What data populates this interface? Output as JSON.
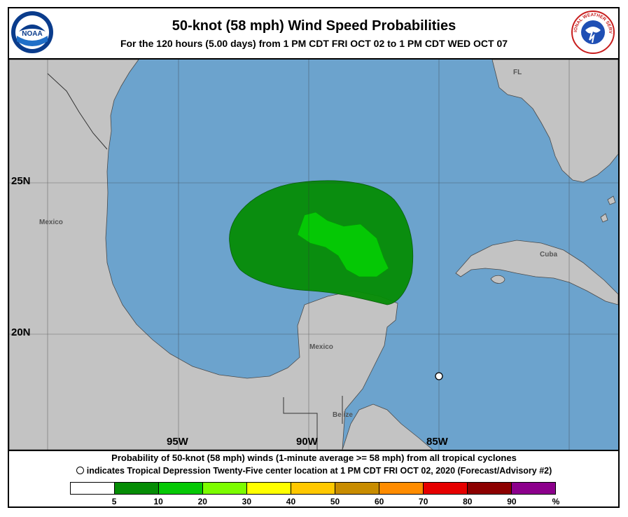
{
  "header": {
    "title": "50-knot (58 mph) Wind Speed Probabilities",
    "subtitle": "For the 120 hours (5.00 days) from 1 PM CDT FRI OCT 02 to 1 PM CDT WED OCT 07",
    "noaa_logo_text": "NOAA",
    "nws_logo_text": "NATIONAL WEATHER SERVICE"
  },
  "map": {
    "lat_labels": [
      "25N",
      "20N"
    ],
    "lon_labels": [
      "95W",
      "90W",
      "85W"
    ],
    "place_labels": [
      "FL",
      "Mexico",
      "Cuba",
      "Mexico",
      "Belize"
    ],
    "colors": {
      "ocean": "#6ca3cd",
      "land": "#c3c3c3",
      "prob_5_10": "#058c05",
      "prob_10_20": "#05c805"
    }
  },
  "caption": {
    "line1": "Probability of 50-knot (58 mph) winds (1-minute average >= 58 mph) from all tropical cyclones",
    "line2": "indicates Tropical Depression Twenty-Five center location at 1 PM CDT FRI OCT 02, 2020 (Forecast/Advisory #2)"
  },
  "legend": {
    "ticks": [
      "5",
      "10",
      "20",
      "30",
      "40",
      "50",
      "60",
      "70",
      "80",
      "90",
      "%"
    ],
    "colors": [
      "#ffffff",
      "#058c05",
      "#05c805",
      "#7cfc00",
      "#ffff00",
      "#ffc800",
      "#c88c00",
      "#ff8c00",
      "#e60000",
      "#8c0000",
      "#8c008c"
    ]
  }
}
